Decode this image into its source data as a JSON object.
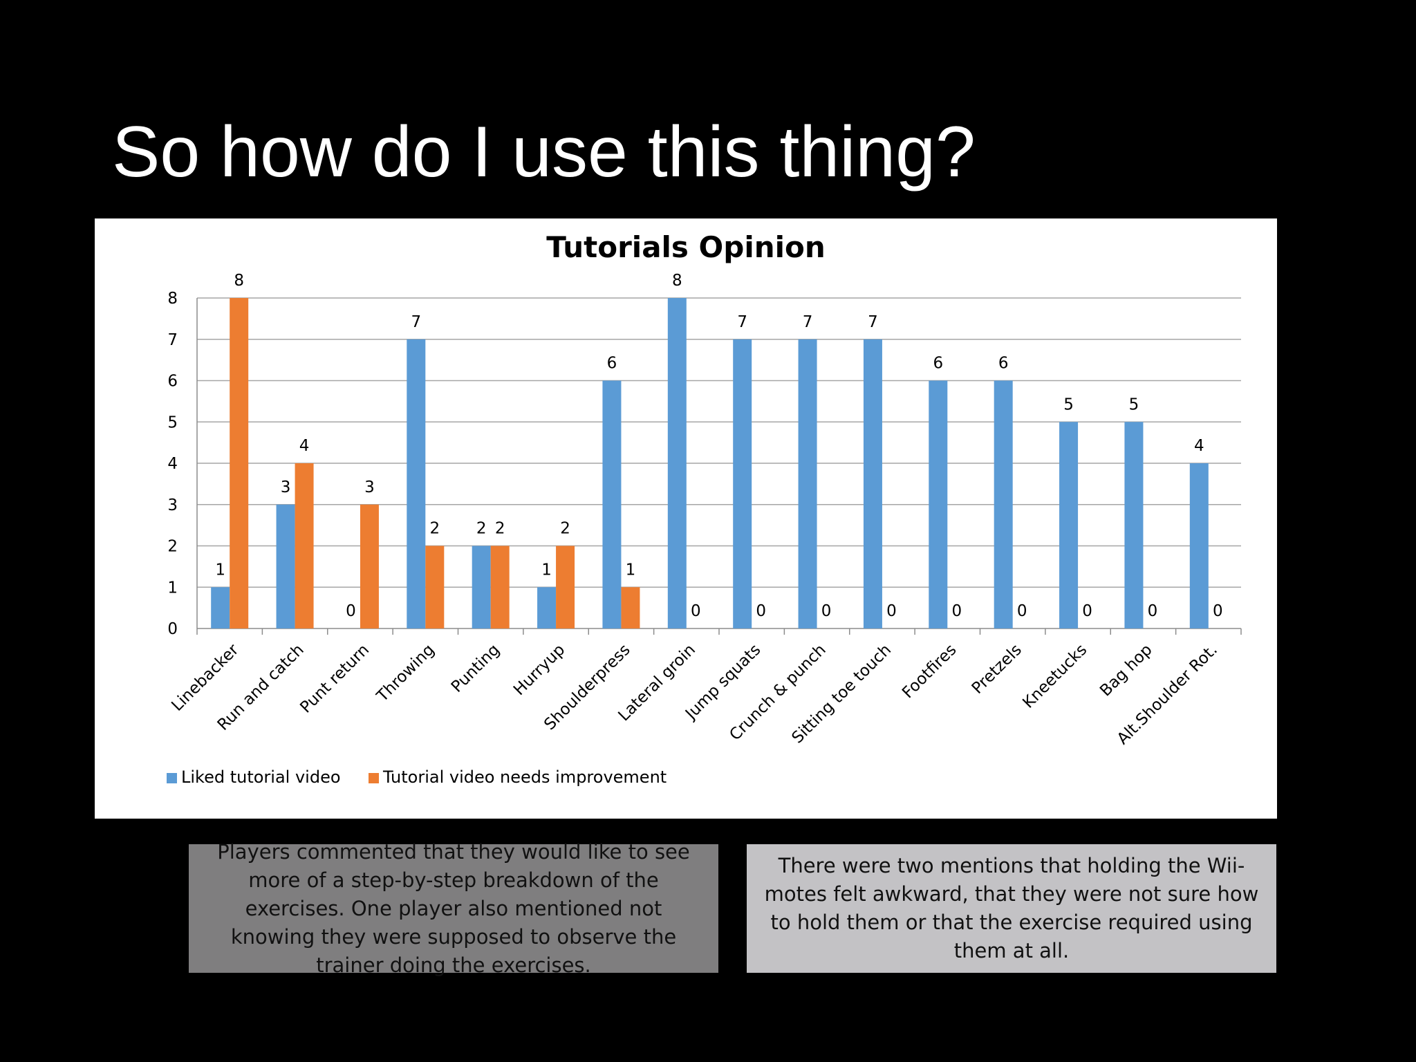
{
  "slide": {
    "title": "So how do I use this thing?"
  },
  "colors": {
    "background": "#000000",
    "liked": "#5b9bd5",
    "needs_improvement": "#ed7d31",
    "callout_left": "#7f7e7f",
    "callout_right": "#c3c2c5"
  },
  "chart_data": {
    "type": "bar",
    "title": "Tutorials Opinion",
    "xlabel": "",
    "ylabel": "",
    "ylim": [
      0,
      8
    ],
    "yticks": [
      0,
      1,
      2,
      3,
      4,
      5,
      6,
      7,
      8
    ],
    "grid": true,
    "legend_position": "bottom-left",
    "categories": [
      "Linebacker",
      "Run and catch",
      "Punt return",
      "Throwing",
      "Punting",
      "Hurryup",
      "Shoulderpress",
      "Lateral groin",
      "Jump squats",
      "Crunch & punch",
      "Sitting toe touch",
      "Footfires",
      "Pretzels",
      "Kneetucks",
      "Bag hop",
      "Alt.Shoulder Rot."
    ],
    "series": [
      {
        "name": "Liked tutorial video",
        "color": "#5b9bd5",
        "values": [
          1,
          3,
          0,
          7,
          2,
          1,
          6,
          8,
          7,
          7,
          7,
          6,
          6,
          5,
          5,
          4
        ]
      },
      {
        "name": "Tutorial video needs improvement",
        "color": "#ed7d31",
        "values": [
          8,
          4,
          3,
          2,
          2,
          2,
          1,
          0,
          0,
          0,
          0,
          0,
          0,
          0,
          0,
          0
        ]
      }
    ]
  },
  "callouts": [
    {
      "text": "Players commented that they would like to see more of a step-by-step breakdown of the exercises. One player also mentioned not knowing they were supposed to observe the trainer doing the exercises."
    },
    {
      "text": "There were two mentions that holding the Wii-motes felt awkward, that they were not sure how to hold them or that the exercise required using them at all."
    }
  ]
}
